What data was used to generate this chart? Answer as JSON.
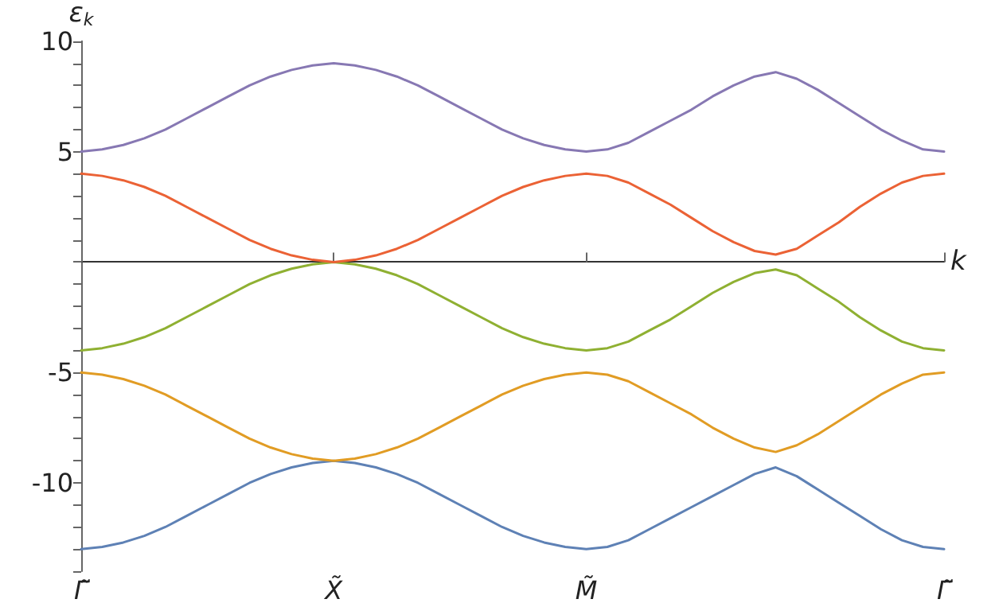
{
  "chart_data": {
    "type": "line",
    "xlabel": "k",
    "ylabel": "ε$_{k}$",
    "categories": [
      "Γ̃",
      null,
      null,
      null,
      null,
      null,
      null,
      null,
      null,
      null,
      null,
      null,
      "X̃",
      null,
      null,
      null,
      null,
      null,
      null,
      null,
      null,
      null,
      null,
      null,
      "M̃",
      null,
      null,
      null,
      null,
      null,
      null,
      null,
      null,
      null,
      null,
      null,
      null,
      null,
      null,
      null,
      null,
      "Γ̃"
    ],
    "series": [
      {
        "color": "#5e81b5",
        "values": [
          -13,
          -12.9,
          -12.7,
          -12.4,
          -12,
          -11.5,
          -11,
          -10.5,
          -10,
          -9.6,
          -9.3,
          -9.1,
          -9,
          -9.1,
          -9.3,
          -9.6,
          -10,
          -10.5,
          -11,
          -11.5,
          -12,
          -12.4,
          -12.7,
          -12.9,
          -13,
          -12.9,
          -12.6,
          -12.1,
          -11.6,
          -11.1,
          -10.6,
          -10.1,
          -9.6,
          -9.3,
          -9.7,
          -10.3,
          -10.9,
          -11.5,
          -12.1,
          -12.6,
          -12.9,
          -13
        ]
      },
      {
        "color": "#e19c24",
        "values": [
          -5,
          -5.1,
          -5.3,
          -5.6,
          -6,
          -6.5,
          -7,
          -7.5,
          -8,
          -8.4,
          -8.7,
          -8.9,
          -9,
          -8.9,
          -8.7,
          -8.4,
          -8,
          -7.5,
          -7,
          -6.5,
          -6,
          -5.6,
          -5.3,
          -5.1,
          -5,
          -5.1,
          -5.4,
          -5.9,
          -6.4,
          -6.9,
          -7.5,
          -8,
          -8.4,
          -8.6,
          -8.3,
          -7.8,
          -7.2,
          -6.6,
          -6,
          -5.5,
          -5.1,
          -5
        ]
      },
      {
        "color": "#8fb032",
        "values": [
          -4,
          -3.9,
          -3.7,
          -3.4,
          -3,
          -2.5,
          -2,
          -1.5,
          -1,
          -0.6,
          -0.3,
          -0.1,
          0,
          -0.1,
          -0.3,
          -0.6,
          -1,
          -1.5,
          -2,
          -2.5,
          -3,
          -3.4,
          -3.7,
          -3.9,
          -4,
          -3.9,
          -3.6,
          -3.1,
          -2.6,
          -2,
          -1.4,
          -0.9,
          -0.5,
          -0.34,
          -0.6,
          -1.2,
          -1.8,
          -2.5,
          -3.1,
          -3.6,
          -3.9,
          -4
        ]
      },
      {
        "color": "#eb6235",
        "values": [
          4,
          3.9,
          3.7,
          3.4,
          3,
          2.5,
          2,
          1.5,
          1,
          0.6,
          0.3,
          0.1,
          0,
          0.1,
          0.3,
          0.6,
          1,
          1.5,
          2,
          2.5,
          3,
          3.4,
          3.7,
          3.9,
          4,
          3.9,
          3.6,
          3.1,
          2.6,
          2,
          1.4,
          0.9,
          0.5,
          0.34,
          0.6,
          1.2,
          1.8,
          2.5,
          3.1,
          3.6,
          3.9,
          4
        ]
      },
      {
        "color": "#8778b3",
        "values": [
          5,
          5.1,
          5.3,
          5.6,
          6,
          6.5,
          7,
          7.5,
          8,
          8.4,
          8.7,
          8.9,
          9,
          8.9,
          8.7,
          8.4,
          8,
          7.5,
          7,
          6.5,
          6,
          5.6,
          5.3,
          5.1,
          5,
          5.1,
          5.4,
          5.9,
          6.4,
          6.9,
          7.5,
          8,
          8.4,
          8.6,
          8.3,
          7.8,
          7.2,
          6.6,
          6,
          5.5,
          5.1,
          5
        ]
      }
    ],
    "ylim": [
      -14,
      10
    ],
    "yticks": [
      -10,
      -5,
      {
        "value": 0,
        "label": null
      },
      5,
      10,
      {
        "value": -14,
        "label": null
      },
      {
        "value": -13,
        "label": null
      },
      {
        "value": -12,
        "label": null
      },
      {
        "value": -11,
        "label": null
      },
      {
        "value": -9,
        "label": null
      },
      {
        "value": -8,
        "label": null
      },
      {
        "value": -7,
        "label": null
      },
      {
        "value": -6,
        "label": null
      },
      {
        "value": -4,
        "label": null
      },
      {
        "value": -3,
        "label": null
      },
      {
        "value": -2,
        "label": null
      },
      {
        "value": -1,
        "label": null
      },
      {
        "value": 1,
        "label": null
      },
      {
        "value": 2,
        "label": null
      },
      {
        "value": 3,
        "label": null
      },
      {
        "value": 4,
        "label": null
      },
      {
        "value": 6,
        "label": null
      },
      {
        "value": 7,
        "label": null
      },
      {
        "value": 8,
        "label": null
      },
      {
        "value": 9,
        "label": null
      }
    ],
    "marker": "none",
    "line_style": "solid"
  }
}
